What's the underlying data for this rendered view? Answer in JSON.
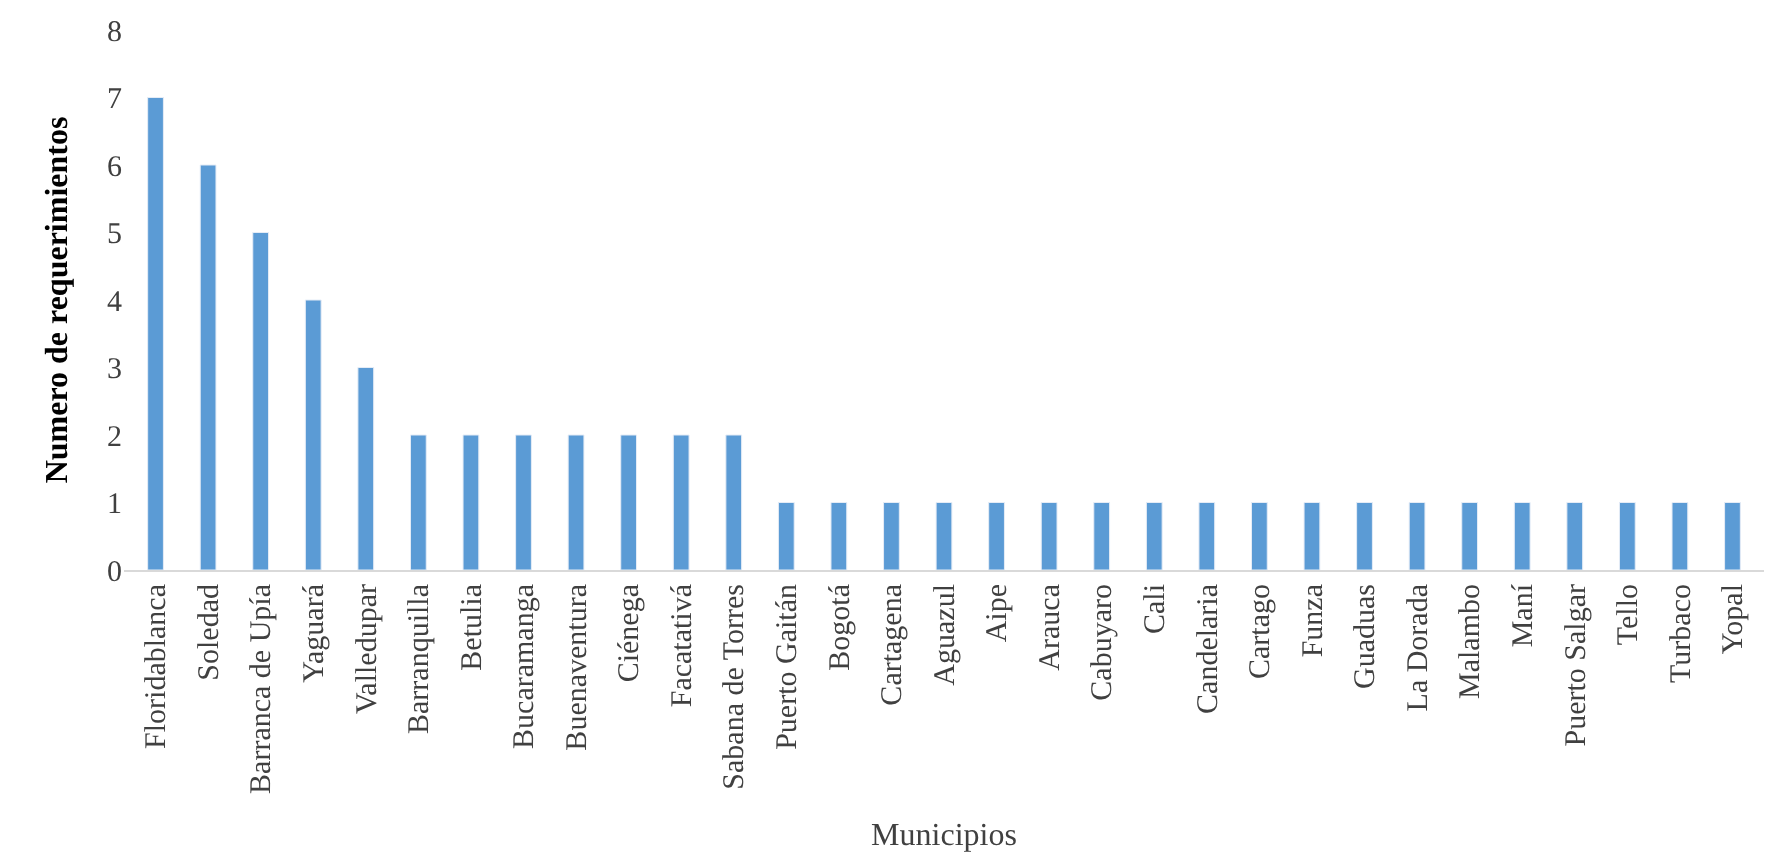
{
  "chart_data": {
    "type": "bar",
    "xlabel": "Municipios",
    "ylabel": "Numero de requerimientos",
    "categories": [
      "Floridablanca",
      "Soledad",
      "Barranca de Upía",
      "Yaguará",
      "Valledupar",
      "Barranquilla",
      "Betulia",
      "Bucaramanga",
      "Buenaventura",
      "Ciénega",
      "Facatativá",
      "Sabana de Torres",
      "Puerto Gaitán",
      "Bogotá",
      "Cartagena",
      "Aguazul",
      "Aipe",
      "Arauca",
      "Cabuyaro",
      "Cali",
      "Candelaria",
      "Cartago",
      "Funza",
      "Guaduas",
      "La Dorada",
      "Malambo",
      "Maní",
      "Puerto Salgar",
      "Tello",
      "Turbaco",
      "Yopal"
    ],
    "values": [
      7,
      6,
      5,
      4,
      3,
      2,
      2,
      2,
      2,
      2,
      2,
      2,
      1,
      1,
      1,
      1,
      1,
      1,
      1,
      1,
      1,
      1,
      1,
      1,
      1,
      1,
      1,
      1,
      1,
      1,
      1
    ],
    "color": "#5b9bd5",
    "ylim": [
      0,
      8
    ],
    "yticks": [
      0,
      1,
      2,
      3,
      4,
      5,
      6,
      7,
      8
    ],
    "grid": false
  }
}
